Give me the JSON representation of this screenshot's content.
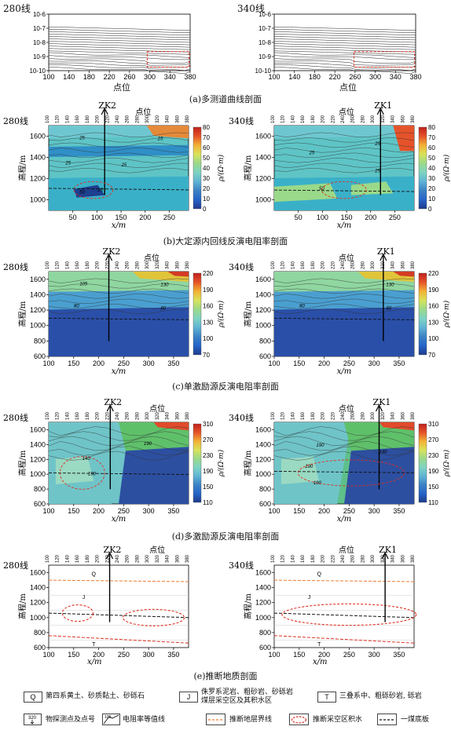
{
  "figure": {
    "captions": {
      "a": "(a)多测道曲线剖面",
      "b": "(b)大定源内回线反演电阻率剖面",
      "c": "(c)单激励源反演电阻率剖面",
      "d": "(d)多激励源反演电阻率剖面",
      "e": "(e)推断地质剖面"
    },
    "lines": {
      "left": "280线",
      "right": "340线"
    },
    "wells": {
      "left": "ZK2",
      "right": "ZK1"
    },
    "point_label": "点位",
    "xlabel": "x/m",
    "ylabel": "高程/m",
    "cbar_label": "ρ/(Ω·m)",
    "point_ticks": [
      "100",
      "120",
      "140",
      "160",
      "180",
      "200",
      "220",
      "240",
      "260",
      "280",
      "300",
      "320",
      "340",
      "360",
      "380"
    ],
    "legend": {
      "q_code": "Q",
      "q_text": "第四系黄土、砂质黏土、砂砾石",
      "j_code": "J",
      "j_text_1": "侏罗系泥岩、粗砂岩、砂砾岩",
      "j_text_2": "煤层采空区及其积水区",
      "t_code": "T",
      "t_text": "三叠系中、粗砾砂岩, 砾岩",
      "station_text": "物探测点及点号",
      "station_sample": "320",
      "contour_text": "电阻率等值线",
      "contour_sample": "100",
      "boundary_text": "推断地层界线",
      "goaf_text": "推断采空区积水",
      "coal_text": "一煤底板"
    },
    "panel_e_labels": {
      "q": "Q",
      "j": "J",
      "t": "T"
    },
    "colors": {
      "contour_red": "#e03020",
      "boundary_orange": "#f07a30",
      "coal_black": "#111111"
    }
  },
  "chart_data": [
    {
      "type": "line",
      "panel": "a-left",
      "title": "280线",
      "xlabel": "点位",
      "x_ticks": [
        100,
        140,
        180,
        220,
        260,
        300,
        340,
        380
      ],
      "y_ticks": [
        "10^-6",
        "10^-7",
        "10^-8",
        "10^-9",
        "10^-10"
      ],
      "xlim": [
        100,
        380
      ],
      "ylim_log10": [
        -10,
        -6
      ],
      "series_count": 18
    },
    {
      "type": "line",
      "panel": "a-right",
      "title": "340线",
      "xlabel": "点位",
      "x_ticks": [
        100,
        140,
        180,
        220,
        260,
        300,
        340,
        380
      ],
      "y_ticks": [
        "10^-6",
        "10^-7",
        "10^-8",
        "10^-9",
        "10^-10"
      ],
      "xlim": [
        100,
        380
      ],
      "ylim_log10": [
        -10,
        -6
      ],
      "series_count": 18
    },
    {
      "type": "heatmap",
      "panel": "b-left",
      "x_ticks": [
        50,
        100,
        150,
        200,
        250
      ],
      "y_ticks": [
        1000,
        1200,
        1400,
        1600
      ],
      "colorbar_ticks": [
        0,
        10,
        20,
        30,
        40,
        50,
        60,
        70,
        80
      ],
      "contour_labels": [
        "25",
        "25",
        "25",
        "25",
        "25",
        "50"
      ]
    },
    {
      "type": "heatmap",
      "panel": "b-right",
      "x_ticks": [
        50,
        100,
        150,
        200,
        250
      ],
      "y_ticks": [
        1000,
        1200,
        1400,
        1600
      ],
      "colorbar_ticks": [
        0,
        10,
        20,
        30,
        40,
        50,
        60,
        70,
        80
      ],
      "contour_labels": [
        "25",
        "25",
        "25",
        "50"
      ]
    },
    {
      "type": "heatmap",
      "panel": "c-left",
      "x_ticks": [
        100,
        150,
        200,
        250,
        300,
        350
      ],
      "y_ticks": [
        600,
        800,
        1000,
        1200,
        1400,
        1600
      ],
      "colorbar_ticks": [
        70,
        100,
        130,
        160,
        190,
        220
      ],
      "contour_labels": [
        "105",
        "130",
        "80",
        "80"
      ]
    },
    {
      "type": "heatmap",
      "panel": "c-right",
      "x_ticks": [
        100,
        150,
        200,
        250,
        300,
        350
      ],
      "y_ticks": [
        600,
        800,
        1000,
        1200,
        1400,
        1600
      ],
      "colorbar_ticks": [
        70,
        100,
        130,
        160,
        190,
        220
      ],
      "contour_labels": [
        "130",
        "80",
        "80"
      ]
    },
    {
      "type": "heatmap",
      "panel": "d-left",
      "x_ticks": [
        100,
        150,
        200,
        250,
        300,
        350
      ],
      "y_ticks": [
        600,
        800,
        1000,
        1200,
        1400,
        1600
      ],
      "colorbar_ticks": [
        110,
        150,
        190,
        230,
        270,
        310
      ],
      "contour_labels": [
        "190",
        "140",
        "190"
      ]
    },
    {
      "type": "heatmap",
      "panel": "d-right",
      "x_ticks": [
        100,
        150,
        200,
        250,
        300,
        350
      ],
      "y_ticks": [
        600,
        800,
        1000,
        1200,
        1400,
        1600
      ],
      "colorbar_ticks": [
        110,
        150,
        190,
        230,
        270,
        310
      ],
      "contour_labels": [
        "190",
        "140",
        "190",
        "190"
      ]
    },
    {
      "type": "line",
      "panel": "e-left",
      "x_ticks": [
        100,
        150,
        200,
        250,
        300,
        350
      ],
      "y_ticks": [
        600,
        800,
        1000,
        1200,
        1400,
        1600
      ],
      "xlim": [
        100,
        380
      ],
      "ylim": [
        600,
        1700
      ]
    },
    {
      "type": "line",
      "panel": "e-right",
      "x_ticks": [
        100,
        150,
        200,
        250,
        300,
        350
      ],
      "y_ticks": [
        600,
        800,
        1000,
        1200,
        1400,
        1600
      ],
      "xlim": [
        100,
        380
      ],
      "ylim": [
        600,
        1700
      ]
    }
  ]
}
